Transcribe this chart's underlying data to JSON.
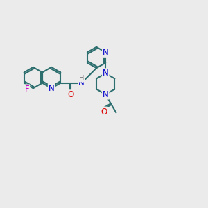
{
  "bg_color": "#ebebeb",
  "bond_color": "#2d6e6e",
  "N_color": "#0000cc",
  "O_color": "#dd0000",
  "F_color": "#cc00cc",
  "H_color": "#707070",
  "line_width": 1.5,
  "font_size": 8.5,
  "bl": 0.48,
  "figsize": [
    3.0,
    3.0
  ],
  "dpi": 100,
  "xlim": [
    0.3,
    9.7
  ],
  "ylim": [
    0.5,
    9.5
  ]
}
